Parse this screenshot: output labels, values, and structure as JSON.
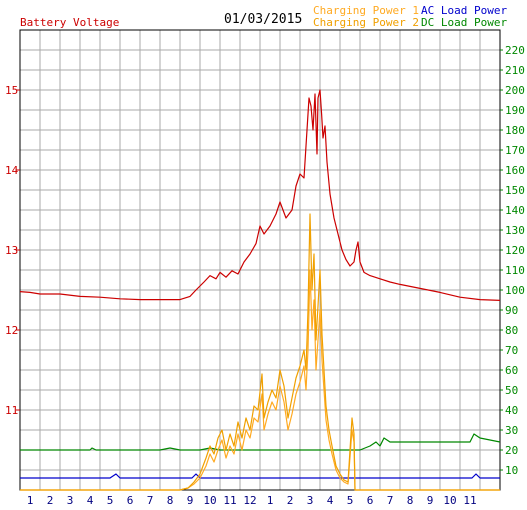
{
  "chart_data": {
    "type": "line",
    "date": "01/03/2015",
    "left_axis_label": "Battery Voltage",
    "left_axis": {
      "min": 10,
      "max": 15.75,
      "ticks": [
        11,
        12,
        13,
        14,
        15
      ]
    },
    "right_axis": {
      "min": 0,
      "max": 230,
      "ticks": [
        10,
        20,
        30,
        40,
        50,
        60,
        70,
        80,
        90,
        100,
        110,
        120,
        130,
        140,
        150,
        160,
        170,
        180,
        190,
        200,
        210,
        220
      ]
    },
    "x_tick_labels": [
      "1",
      "2",
      "3",
      "4",
      "5",
      "6",
      "7",
      "8",
      "9",
      "10",
      "11",
      "12",
      "1",
      "2",
      "3",
      "4",
      "5",
      "6",
      "7",
      "8",
      "9",
      "10",
      "11"
    ],
    "grid": true,
    "legend": [
      {
        "label": "Charging Power 1",
        "color": "#ffaa22"
      },
      {
        "label": "Charging Power 2",
        "color": "#f0a000"
      },
      {
        "label": "AC Load Power",
        "color": "#0000cc"
      },
      {
        "label": "DC Load Power",
        "color": "#008800"
      }
    ],
    "colors": {
      "voltage": "#cc0000",
      "left_axis": "#cc0000",
      "right_axis": "#008800",
      "grid": "#aaaaaa"
    },
    "series": [
      {
        "name": "Battery Voltage",
        "axis": "left",
        "color": "#cc0000",
        "points": [
          [
            0,
            12.48
          ],
          [
            0.5,
            12.47
          ],
          [
            1,
            12.45
          ],
          [
            2,
            12.45
          ],
          [
            3,
            12.42
          ],
          [
            4,
            12.41
          ],
          [
            5,
            12.39
          ],
          [
            6,
            12.38
          ],
          [
            7,
            12.38
          ],
          [
            8,
            12.38
          ],
          [
            8.5,
            12.42
          ],
          [
            8.8,
            12.5
          ],
          [
            9.2,
            12.6
          ],
          [
            9.5,
            12.68
          ],
          [
            9.8,
            12.64
          ],
          [
            10,
            12.72
          ],
          [
            10.3,
            12.66
          ],
          [
            10.6,
            12.74
          ],
          [
            10.9,
            12.7
          ],
          [
            11.2,
            12.85
          ],
          [
            11.5,
            12.95
          ],
          [
            11.8,
            13.08
          ],
          [
            12,
            13.3
          ],
          [
            12.2,
            13.2
          ],
          [
            12.5,
            13.3
          ],
          [
            12.8,
            13.45
          ],
          [
            13,
            13.6
          ],
          [
            13.3,
            13.4
          ],
          [
            13.6,
            13.5
          ],
          [
            13.8,
            13.8
          ],
          [
            14,
            13.95
          ],
          [
            14.2,
            13.9
          ],
          [
            14.3,
            14.3
          ],
          [
            14.45,
            14.9
          ],
          [
            14.55,
            14.8
          ],
          [
            14.65,
            14.5
          ],
          [
            14.75,
            14.95
          ],
          [
            14.85,
            14.2
          ],
          [
            14.9,
            14.9
          ],
          [
            15,
            15.0
          ],
          [
            15.08,
            14.7
          ],
          [
            15.15,
            14.4
          ],
          [
            15.25,
            14.55
          ],
          [
            15.35,
            14.1
          ],
          [
            15.5,
            13.7
          ],
          [
            15.7,
            13.4
          ],
          [
            15.9,
            13.2
          ],
          [
            16.1,
            13.0
          ],
          [
            16.3,
            12.88
          ],
          [
            16.5,
            12.8
          ],
          [
            16.7,
            12.85
          ],
          [
            16.8,
            13.0
          ],
          [
            16.9,
            13.1
          ],
          [
            17,
            12.85
          ],
          [
            17.2,
            12.72
          ],
          [
            17.5,
            12.68
          ],
          [
            18,
            12.64
          ],
          [
            18.5,
            12.6
          ],
          [
            19,
            12.57
          ],
          [
            20,
            12.52
          ],
          [
            21,
            12.47
          ],
          [
            22,
            12.41
          ],
          [
            23,
            12.38
          ],
          [
            24,
            12.37
          ]
        ]
      },
      {
        "name": "Charging Power 1",
        "axis": "right",
        "color": "#ffaa22",
        "points": [
          [
            0,
            0
          ],
          [
            8,
            0
          ],
          [
            8.4,
            1
          ],
          [
            8.7,
            3
          ],
          [
            9,
            6
          ],
          [
            9.3,
            12
          ],
          [
            9.5,
            18
          ],
          [
            9.7,
            14
          ],
          [
            9.9,
            20
          ],
          [
            10.1,
            25
          ],
          [
            10.3,
            16
          ],
          [
            10.5,
            22
          ],
          [
            10.7,
            18
          ],
          [
            10.9,
            28
          ],
          [
            11.1,
            20
          ],
          [
            11.3,
            30
          ],
          [
            11.5,
            26
          ],
          [
            11.7,
            36
          ],
          [
            11.9,
            34
          ],
          [
            12.1,
            48
          ],
          [
            12.2,
            30
          ],
          [
            12.4,
            38
          ],
          [
            12.6,
            44
          ],
          [
            12.8,
            40
          ],
          [
            13,
            52
          ],
          [
            13.2,
            44
          ],
          [
            13.4,
            30
          ],
          [
            13.6,
            38
          ],
          [
            13.8,
            48
          ],
          [
            14,
            54
          ],
          [
            14.2,
            62
          ],
          [
            14.3,
            50
          ],
          [
            14.4,
            70
          ],
          [
            14.5,
            110
          ],
          [
            14.6,
            80
          ],
          [
            14.7,
            95
          ],
          [
            14.8,
            60
          ],
          [
            14.9,
            75
          ],
          [
            15,
            90
          ],
          [
            15.1,
            65
          ],
          [
            15.2,
            50
          ],
          [
            15.3,
            35
          ],
          [
            15.45,
            25
          ],
          [
            15.6,
            18
          ],
          [
            15.8,
            10
          ],
          [
            16,
            6
          ],
          [
            16.2,
            4
          ],
          [
            16.4,
            3
          ],
          [
            16.6,
            30
          ],
          [
            16.7,
            24
          ],
          [
            16.75,
            0
          ],
          [
            24,
            0
          ]
        ]
      },
      {
        "name": "Charging Power 2",
        "axis": "right",
        "color": "#f0a000",
        "points": [
          [
            0,
            0
          ],
          [
            8,
            0
          ],
          [
            8.4,
            1
          ],
          [
            8.7,
            4
          ],
          [
            9,
            8
          ],
          [
            9.3,
            16
          ],
          [
            9.5,
            22
          ],
          [
            9.7,
            18
          ],
          [
            9.9,
            26
          ],
          [
            10.1,
            30
          ],
          [
            10.3,
            20
          ],
          [
            10.5,
            28
          ],
          [
            10.7,
            22
          ],
          [
            10.9,
            34
          ],
          [
            11.1,
            26
          ],
          [
            11.3,
            36
          ],
          [
            11.5,
            30
          ],
          [
            11.7,
            42
          ],
          [
            11.9,
            40
          ],
          [
            12.1,
            58
          ],
          [
            12.2,
            36
          ],
          [
            12.4,
            44
          ],
          [
            12.6,
            50
          ],
          [
            12.8,
            46
          ],
          [
            13,
            60
          ],
          [
            13.2,
            52
          ],
          [
            13.4,
            36
          ],
          [
            13.6,
            46
          ],
          [
            13.8,
            56
          ],
          [
            14,
            62
          ],
          [
            14.2,
            70
          ],
          [
            14.3,
            60
          ],
          [
            14.4,
            90
          ],
          [
            14.5,
            138
          ],
          [
            14.6,
            100
          ],
          [
            14.7,
            118
          ],
          [
            14.8,
            75
          ],
          [
            14.9,
            92
          ],
          [
            15,
            110
          ],
          [
            15.1,
            78
          ],
          [
            15.2,
            60
          ],
          [
            15.3,
            42
          ],
          [
            15.45,
            30
          ],
          [
            15.6,
            22
          ],
          [
            15.8,
            12
          ],
          [
            16,
            8
          ],
          [
            16.2,
            5
          ],
          [
            16.4,
            4
          ],
          [
            16.6,
            36
          ],
          [
            16.7,
            28
          ],
          [
            16.75,
            0
          ],
          [
            24,
            0
          ]
        ]
      },
      {
        "name": "AC Load Power",
        "axis": "right",
        "color": "#0000cc",
        "points": [
          [
            0,
            6
          ],
          [
            1,
            6
          ],
          [
            2,
            6
          ],
          [
            3,
            6
          ],
          [
            4,
            6
          ],
          [
            4.5,
            6
          ],
          [
            4.8,
            8
          ],
          [
            5,
            6
          ],
          [
            6,
            6
          ],
          [
            7,
            6
          ],
          [
            8,
            6
          ],
          [
            8.6,
            6
          ],
          [
            8.8,
            8
          ],
          [
            9,
            6
          ],
          [
            10,
            6
          ],
          [
            11,
            6
          ],
          [
            12,
            6
          ],
          [
            13,
            6
          ],
          [
            14,
            6
          ],
          [
            15,
            6
          ],
          [
            16,
            6
          ],
          [
            17,
            6
          ],
          [
            18,
            6
          ],
          [
            19,
            6
          ],
          [
            20,
            6
          ],
          [
            21,
            6
          ],
          [
            22,
            6
          ],
          [
            22.6,
            6
          ],
          [
            22.8,
            8
          ],
          [
            23,
            6
          ],
          [
            24,
            6
          ]
        ]
      },
      {
        "name": "DC Load Power",
        "axis": "right",
        "color": "#008800",
        "points": [
          [
            0,
            20
          ],
          [
            1,
            20
          ],
          [
            2,
            20
          ],
          [
            3,
            20
          ],
          [
            3.5,
            20
          ],
          [
            3.6,
            21
          ],
          [
            3.8,
            20
          ],
          [
            5,
            20
          ],
          [
            6,
            20
          ],
          [
            7,
            20
          ],
          [
            7.5,
            21
          ],
          [
            8,
            20
          ],
          [
            9,
            20
          ],
          [
            9.5,
            21
          ],
          [
            10,
            20
          ],
          [
            11,
            20
          ],
          [
            12,
            20
          ],
          [
            13,
            20
          ],
          [
            14,
            20
          ],
          [
            15,
            20
          ],
          [
            16,
            20
          ],
          [
            17,
            20
          ],
          [
            17.5,
            22
          ],
          [
            17.8,
            24
          ],
          [
            18,
            22
          ],
          [
            18.2,
            26
          ],
          [
            18.5,
            24
          ],
          [
            19,
            24
          ],
          [
            20,
            24
          ],
          [
            21,
            24
          ],
          [
            22,
            24
          ],
          [
            22.5,
            24
          ],
          [
            22.7,
            28
          ],
          [
            23,
            26
          ],
          [
            23.5,
            25
          ],
          [
            24,
            24
          ]
        ]
      }
    ]
  }
}
